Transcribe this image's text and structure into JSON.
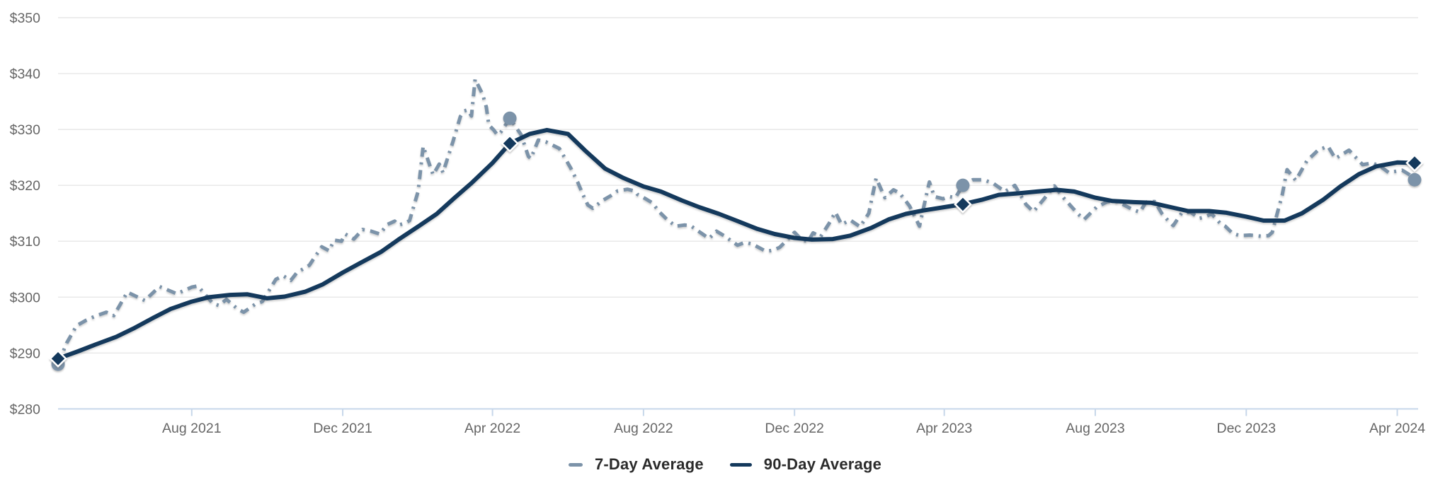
{
  "legend": {
    "items": [
      {
        "label": "7-Day Average",
        "color": "#7C93A9",
        "swatch_width": 20
      },
      {
        "label": "90-Day Average",
        "color": "#14395C",
        "swatch_width": 31
      }
    ]
  },
  "axes": {
    "y": {
      "prefix": "$",
      "min": 280,
      "max": 350,
      "step": 10
    },
    "x": {
      "ticks": [
        {
          "date": "2021-08-01",
          "label": "Aug 2021"
        },
        {
          "date": "2021-12-01",
          "label": "Dec 2021"
        },
        {
          "date": "2022-04-01",
          "label": "Apr 2022"
        },
        {
          "date": "2022-08-01",
          "label": "Aug 2022"
        },
        {
          "date": "2022-12-01",
          "label": "Dec 2022"
        },
        {
          "date": "2023-04-01",
          "label": "Apr 2023"
        },
        {
          "date": "2023-08-01",
          "label": "Aug 2023"
        },
        {
          "date": "2023-12-01",
          "label": "Dec 2023"
        },
        {
          "date": "2024-04-01",
          "label": "Apr 2024"
        }
      ]
    }
  },
  "colors": {
    "grid": "#E7E7E7",
    "axis_line": "#C7D7EA",
    "axis_text": "#666666",
    "legend_text": "#2B2B2B",
    "background": "#FFFFFF",
    "series_7day": "#7C93A9",
    "series_90day": "#14395C"
  },
  "chart_data": {
    "type": "line",
    "title": "",
    "xlabel": "",
    "ylabel": "",
    "ylim": [
      280,
      350
    ],
    "grid": "horizontal",
    "legend_position": "bottom-center",
    "x_range": {
      "start": "2021-04-15",
      "end": "2024-04-15"
    },
    "series": [
      {
        "name": "7-Day Average",
        "style": "dashed",
        "color": "#7C93A9",
        "points": [
          [
            "2021-04-15",
            288.0
          ],
          [
            "2021-04-22",
            291.8
          ],
          [
            "2021-04-30",
            294.9
          ],
          [
            "2021-05-08",
            295.9
          ],
          [
            "2021-05-15",
            296.6
          ],
          [
            "2021-05-24",
            297.3
          ],
          [
            "2021-05-30",
            296.7
          ],
          [
            "2021-06-10",
            300.9
          ],
          [
            "2021-06-24",
            299.4
          ],
          [
            "2021-07-06",
            301.9
          ],
          [
            "2021-07-20",
            300.6
          ],
          [
            "2021-08-01",
            301.8
          ],
          [
            "2021-08-06",
            302.0
          ],
          [
            "2021-08-18",
            298.9
          ],
          [
            "2021-08-23",
            298.5
          ],
          [
            "2021-08-29",
            299.6
          ],
          [
            "2021-09-07",
            297.9
          ],
          [
            "2021-09-12",
            297.3
          ],
          [
            "2021-09-21",
            298.7
          ],
          [
            "2021-09-27",
            299.2
          ],
          [
            "2021-10-08",
            303.2
          ],
          [
            "2021-10-14",
            303.8
          ],
          [
            "2021-10-20",
            303.0
          ],
          [
            "2021-10-25",
            304.4
          ],
          [
            "2021-11-04",
            305.7
          ],
          [
            "2021-11-14",
            309.0
          ],
          [
            "2021-11-20",
            308.3
          ],
          [
            "2021-11-24",
            310.2
          ],
          [
            "2021-11-30",
            310.0
          ],
          [
            "2021-12-03",
            311.3
          ],
          [
            "2021-12-10",
            310.4
          ],
          [
            "2021-12-17",
            312.1
          ],
          [
            "2021-12-24",
            311.8
          ],
          [
            "2021-12-31",
            311.3
          ],
          [
            "2022-01-06",
            313.0
          ],
          [
            "2022-01-12",
            313.6
          ],
          [
            "2022-01-15",
            312.9
          ],
          [
            "2022-01-20",
            313.2
          ],
          [
            "2022-01-24",
            313.7
          ],
          [
            "2022-01-31",
            319.0
          ],
          [
            "2022-02-04",
            327.0
          ],
          [
            "2022-02-12",
            321.9
          ],
          [
            "2022-02-17",
            323.8
          ],
          [
            "2022-02-20",
            322.3
          ],
          [
            "2022-02-28",
            327.8
          ],
          [
            "2022-03-06",
            332.3
          ],
          [
            "2022-03-09",
            333.3
          ],
          [
            "2022-03-12",
            333.5
          ],
          [
            "2022-03-15",
            332.4
          ],
          [
            "2022-03-18",
            339.0
          ],
          [
            "2022-03-24",
            336.3
          ],
          [
            "2022-03-27",
            334.0
          ],
          [
            "2022-03-29",
            330.8
          ],
          [
            "2022-04-02",
            329.9
          ],
          [
            "2022-04-05",
            329.0
          ],
          [
            "2022-04-08",
            329.6
          ],
          [
            "2022-04-15",
            332.0
          ],
          [
            "2022-04-24",
            329.1
          ],
          [
            "2022-04-30",
            325.2
          ],
          [
            "2022-05-02",
            324.8
          ],
          [
            "2022-05-08",
            328.1
          ],
          [
            "2022-05-14",
            327.8
          ],
          [
            "2022-05-25",
            326.6
          ],
          [
            "2022-06-03",
            323.2
          ],
          [
            "2022-06-09",
            320.5
          ],
          [
            "2022-06-13",
            318.4
          ],
          [
            "2022-06-17",
            316.5
          ],
          [
            "2022-06-21",
            315.9
          ],
          [
            "2022-06-29",
            317.3
          ],
          [
            "2022-07-06",
            318.2
          ],
          [
            "2022-07-11",
            319.0
          ],
          [
            "2022-07-19",
            319.3
          ],
          [
            "2022-07-25",
            319.0
          ],
          [
            "2022-07-27",
            318.4
          ],
          [
            "2022-08-02",
            317.7
          ],
          [
            "2022-08-08",
            316.9
          ],
          [
            "2022-08-14",
            315.2
          ],
          [
            "2022-08-20",
            313.9
          ],
          [
            "2022-08-27",
            312.7
          ],
          [
            "2022-09-03",
            312.9
          ],
          [
            "2022-09-08",
            312.8
          ],
          [
            "2022-09-17",
            311.4
          ],
          [
            "2022-09-23",
            310.5
          ],
          [
            "2022-09-29",
            311.8
          ],
          [
            "2022-10-05",
            311.0
          ],
          [
            "2022-10-16",
            309.3
          ],
          [
            "2022-10-22",
            309.8
          ],
          [
            "2022-10-28",
            309.5
          ],
          [
            "2022-11-02",
            308.9
          ],
          [
            "2022-11-08",
            308.2
          ],
          [
            "2022-11-14",
            308.4
          ],
          [
            "2022-11-19",
            308.9
          ],
          [
            "2022-11-25",
            310.2
          ],
          [
            "2022-12-01",
            311.6
          ],
          [
            "2022-12-07",
            310.2
          ],
          [
            "2022-12-12",
            310.0
          ],
          [
            "2022-12-16",
            311.5
          ],
          [
            "2022-12-22",
            310.8
          ],
          [
            "2022-12-29",
            313.2
          ],
          [
            "2023-01-03",
            315.2
          ],
          [
            "2023-01-08",
            313.0
          ],
          [
            "2023-01-15",
            313.8
          ],
          [
            "2023-01-23",
            312.6
          ],
          [
            "2023-01-30",
            315.0
          ],
          [
            "2023-02-05",
            321.3
          ],
          [
            "2023-02-12",
            317.8
          ],
          [
            "2023-02-19",
            319.2
          ],
          [
            "2023-02-24",
            318.6
          ],
          [
            "2023-03-04",
            316.3
          ],
          [
            "2023-03-12",
            312.7
          ],
          [
            "2023-03-18",
            318.7
          ],
          [
            "2023-03-20",
            320.6
          ],
          [
            "2023-03-24",
            318.0
          ],
          [
            "2023-03-31",
            317.6
          ],
          [
            "2023-04-05",
            318.0
          ],
          [
            "2023-04-10",
            317.8
          ],
          [
            "2023-04-16",
            320.0
          ],
          [
            "2023-04-24",
            321.0
          ],
          [
            "2023-05-03",
            321.0
          ],
          [
            "2023-05-11",
            320.3
          ],
          [
            "2023-05-20",
            318.9
          ],
          [
            "2023-05-28",
            320.0
          ],
          [
            "2023-06-06",
            316.6
          ],
          [
            "2023-06-12",
            315.3
          ],
          [
            "2023-06-20",
            317.4
          ],
          [
            "2023-06-29",
            319.9
          ],
          [
            "2023-07-07",
            317.6
          ],
          [
            "2023-07-18",
            314.9
          ],
          [
            "2023-07-23",
            313.9
          ],
          [
            "2023-08-02",
            316.1
          ],
          [
            "2023-08-11",
            317.1
          ],
          [
            "2023-08-19",
            317.1
          ],
          [
            "2023-08-31",
            315.7
          ],
          [
            "2023-09-06",
            315.2
          ],
          [
            "2023-09-11",
            317.0
          ],
          [
            "2023-09-18",
            317.1
          ],
          [
            "2023-09-24",
            314.9
          ],
          [
            "2023-09-30",
            313.4
          ],
          [
            "2023-10-03",
            312.8
          ],
          [
            "2023-10-10",
            315.1
          ],
          [
            "2023-10-17",
            315.2
          ],
          [
            "2023-10-24",
            314.1
          ],
          [
            "2023-10-28",
            314.3
          ],
          [
            "2023-11-03",
            314.9
          ],
          [
            "2023-11-10",
            313.2
          ],
          [
            "2023-11-14",
            312.7
          ],
          [
            "2023-11-20",
            311.4
          ],
          [
            "2023-11-26",
            311.0
          ],
          [
            "2023-12-04",
            311.1
          ],
          [
            "2023-12-13",
            310.9
          ],
          [
            "2023-12-19",
            311.0
          ],
          [
            "2023-12-22",
            311.6
          ],
          [
            "2023-12-26",
            315.0
          ],
          [
            "2023-12-30",
            318.2
          ],
          [
            "2024-01-03",
            322.8
          ],
          [
            "2024-01-10",
            320.9
          ],
          [
            "2024-01-19",
            324.4
          ],
          [
            "2024-01-28",
            326.3
          ],
          [
            "2024-02-05",
            327.0
          ],
          [
            "2024-02-11",
            324.8
          ],
          [
            "2024-02-22",
            326.3
          ],
          [
            "2024-03-04",
            323.7
          ],
          [
            "2024-03-12",
            324.0
          ],
          [
            "2024-03-19",
            323.3
          ],
          [
            "2024-03-25",
            322.3
          ],
          [
            "2024-04-05",
            322.7
          ],
          [
            "2024-04-11",
            321.9
          ],
          [
            "2024-04-15",
            321.0
          ]
        ]
      },
      {
        "name": "90-Day Average",
        "style": "solid",
        "color": "#14395C",
        "points": [
          [
            "2021-04-15",
            289.0
          ],
          [
            "2021-05-01",
            290.3
          ],
          [
            "2021-05-15",
            291.5
          ],
          [
            "2021-06-01",
            292.9
          ],
          [
            "2021-06-15",
            294.4
          ],
          [
            "2021-07-01",
            296.3
          ],
          [
            "2021-07-15",
            297.9
          ],
          [
            "2021-08-01",
            299.2
          ],
          [
            "2021-08-15",
            300.0
          ],
          [
            "2021-09-01",
            300.4
          ],
          [
            "2021-09-15",
            300.5
          ],
          [
            "2021-10-01",
            299.8
          ],
          [
            "2021-10-15",
            300.1
          ],
          [
            "2021-11-01",
            301.0
          ],
          [
            "2021-11-15",
            302.3
          ],
          [
            "2021-12-01",
            304.4
          ],
          [
            "2021-12-15",
            306.1
          ],
          [
            "2022-01-01",
            308.1
          ],
          [
            "2022-01-15",
            310.3
          ],
          [
            "2022-02-01",
            312.8
          ],
          [
            "2022-02-15",
            314.9
          ],
          [
            "2022-03-01",
            317.7
          ],
          [
            "2022-03-15",
            320.4
          ],
          [
            "2022-04-01",
            324.0
          ],
          [
            "2022-04-15",
            327.5
          ],
          [
            "2022-05-01",
            329.2
          ],
          [
            "2022-05-15",
            329.9
          ],
          [
            "2022-06-01",
            329.2
          ],
          [
            "2022-06-15",
            326.2
          ],
          [
            "2022-07-01",
            323.0
          ],
          [
            "2022-07-15",
            321.4
          ],
          [
            "2022-08-01",
            319.8
          ],
          [
            "2022-08-15",
            318.9
          ],
          [
            "2022-09-01",
            317.3
          ],
          [
            "2022-09-15",
            316.1
          ],
          [
            "2022-10-01",
            314.9
          ],
          [
            "2022-10-15",
            313.7
          ],
          [
            "2022-11-01",
            312.2
          ],
          [
            "2022-11-15",
            311.3
          ],
          [
            "2022-12-01",
            310.6
          ],
          [
            "2022-12-15",
            310.3
          ],
          [
            "2023-01-01",
            310.4
          ],
          [
            "2023-01-15",
            311.0
          ],
          [
            "2023-02-01",
            312.4
          ],
          [
            "2023-02-15",
            313.9
          ],
          [
            "2023-03-01",
            314.9
          ],
          [
            "2023-03-15",
            315.5
          ],
          [
            "2023-04-01",
            316.1
          ],
          [
            "2023-04-15",
            316.6
          ],
          [
            "2023-05-01",
            317.4
          ],
          [
            "2023-05-15",
            318.3
          ],
          [
            "2023-06-01",
            318.6
          ],
          [
            "2023-06-15",
            318.9
          ],
          [
            "2023-07-01",
            319.2
          ],
          [
            "2023-07-15",
            318.9
          ],
          [
            "2023-08-01",
            317.8
          ],
          [
            "2023-08-15",
            317.2
          ],
          [
            "2023-09-01",
            317.0
          ],
          [
            "2023-09-15",
            316.9
          ],
          [
            "2023-10-01",
            316.1
          ],
          [
            "2023-10-15",
            315.4
          ],
          [
            "2023-11-01",
            315.4
          ],
          [
            "2023-11-15",
            315.1
          ],
          [
            "2023-12-01",
            314.4
          ],
          [
            "2023-12-15",
            313.7
          ],
          [
            "2024-01-01",
            313.7
          ],
          [
            "2024-01-15",
            315.0
          ],
          [
            "2024-02-01",
            317.4
          ],
          [
            "2024-02-15",
            319.8
          ],
          [
            "2024-03-01",
            322.0
          ],
          [
            "2024-03-15",
            323.4
          ],
          [
            "2024-04-01",
            324.1
          ],
          [
            "2024-04-15",
            324.0
          ]
        ]
      }
    ],
    "markers": [
      {
        "series": "7-Day Average",
        "shape": "circle",
        "date": "2021-04-15",
        "value": 288.0
      },
      {
        "series": "90-Day Average",
        "shape": "diamond",
        "date": "2021-04-15",
        "value": 289.0
      },
      {
        "series": "7-Day Average",
        "shape": "circle",
        "date": "2022-04-15",
        "value": 332.0
      },
      {
        "series": "90-Day Average",
        "shape": "diamond",
        "date": "2022-04-15",
        "value": 327.5
      },
      {
        "series": "7-Day Average",
        "shape": "circle",
        "date": "2023-04-16",
        "value": 320.0
      },
      {
        "series": "90-Day Average",
        "shape": "diamond",
        "date": "2023-04-16",
        "value": 316.6
      },
      {
        "series": "7-Day Average",
        "shape": "circle",
        "date": "2024-04-15",
        "value": 321.0
      },
      {
        "series": "90-Day Average",
        "shape": "diamond",
        "date": "2024-04-15",
        "value": 324.0
      }
    ]
  }
}
